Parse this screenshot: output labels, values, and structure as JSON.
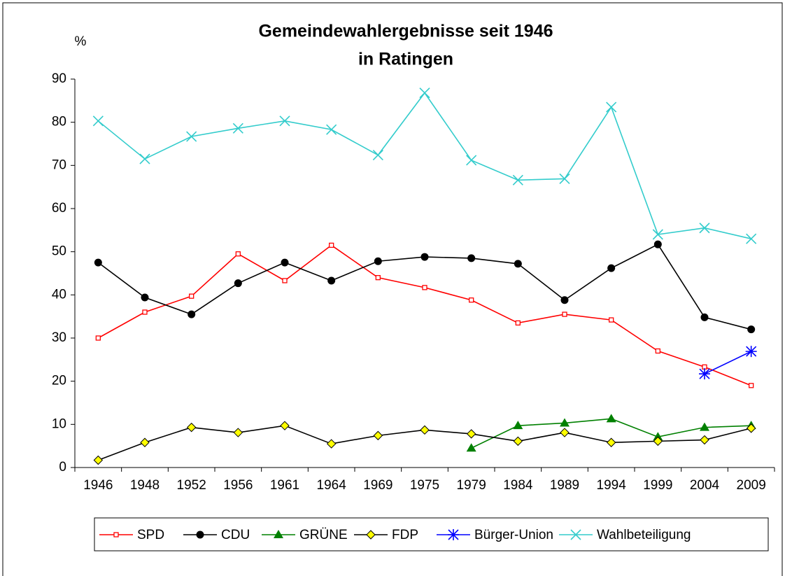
{
  "chart_data": {
    "type": "line",
    "title": "Gemeindewahlergebnisse seit 1946",
    "subtitle": "in Ratingen",
    "y_label": "%",
    "categories": [
      "1946",
      "1948",
      "1952",
      "1956",
      "1961",
      "1964",
      "1969",
      "1975",
      "1979",
      "1984",
      "1989",
      "1994",
      "1999",
      "2004",
      "2009"
    ],
    "ylim": [
      0,
      90
    ],
    "yticks": [
      0,
      10,
      20,
      30,
      40,
      50,
      60,
      70,
      80,
      90
    ],
    "legend": "bottom",
    "series": [
      {
        "name": "SPD",
        "color": "#ff0000",
        "marker": "square",
        "values": [
          30,
          36,
          39.7,
          49.5,
          43.3,
          51.5,
          44,
          41.7,
          38.8,
          33.5,
          35.5,
          34.2,
          27,
          23.3,
          19
        ]
      },
      {
        "name": "CDU",
        "color": "#000000",
        "marker": "circle",
        "values": [
          47.5,
          39.4,
          35.5,
          42.7,
          47.5,
          43.3,
          47.8,
          48.8,
          48.5,
          47.2,
          38.8,
          46.2,
          51.7,
          34.8,
          32
        ]
      },
      {
        "name": "GRÜNE",
        "color": "#008000",
        "marker": "triangle",
        "values": [
          null,
          null,
          null,
          null,
          null,
          null,
          null,
          null,
          4.5,
          9.7,
          10.3,
          11.3,
          7.1,
          9.3,
          9.7
        ]
      },
      {
        "name": "FDP",
        "color": "#000000",
        "marker": "diamond",
        "values": [
          1.7,
          5.8,
          9.3,
          8.1,
          9.7,
          5.5,
          7.4,
          8.7,
          7.8,
          6.1,
          8.1,
          5.8,
          6.1,
          6.4,
          9.1
        ]
      },
      {
        "name": "Bürger-Union",
        "color": "#0000ff",
        "marker": "star",
        "values": [
          null,
          null,
          null,
          null,
          null,
          null,
          null,
          null,
          null,
          null,
          null,
          null,
          null,
          21.7,
          26.9
        ]
      },
      {
        "name": "Wahlbeteiligung",
        "color": "#33cccc",
        "marker": "x",
        "values": [
          80.3,
          71.5,
          76.7,
          78.6,
          80.3,
          78.3,
          72.4,
          86.8,
          71.2,
          66.6,
          66.9,
          83.5,
          54,
          55.5,
          53
        ]
      }
    ]
  }
}
